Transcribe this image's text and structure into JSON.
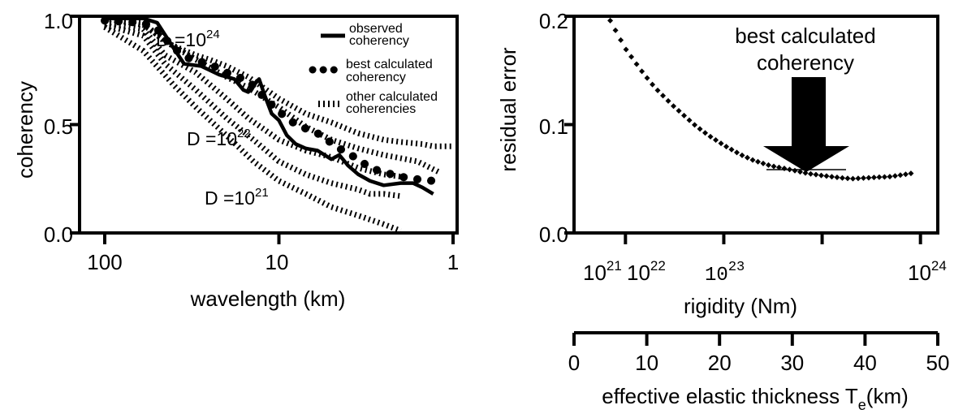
{
  "chart_data": [
    {
      "type": "line",
      "xlabel": "wavelength (km)",
      "ylabel": "coherency",
      "x_scale": "log",
      "x_reversed": true,
      "xlim": [
        100,
        1
      ],
      "ylim": [
        0,
        1
      ],
      "xticks": [
        "100",
        "10",
        "1"
      ],
      "yticks": [
        "0.0",
        "0.5",
        "1.0"
      ],
      "legend_position": "top-right",
      "legend": [
        {
          "line1": "observed",
          "line2": "coherency"
        },
        {
          "line1": "best calculated",
          "line2": "coherency"
        },
        {
          "line1": "other calculated",
          "line2": "coherencies"
        }
      ],
      "annotations": [
        {
          "base": "D =10",
          "exp": "24"
        },
        {
          "base": "D =10",
          "exp": "22"
        },
        {
          "base": "D =10",
          "exp": "21"
        }
      ],
      "series": [
        {
          "style": "solid",
          "x": [
            100,
            60,
            50,
            40,
            35,
            28,
            22,
            18,
            16,
            15,
            14,
            13,
            12,
            11,
            10,
            9,
            8,
            7,
            6,
            5,
            4.5,
            4,
            3.5,
            3,
            2.5,
            2,
            1.7,
            1.5,
            1.3
          ],
          "y": [
            0.99,
            0.99,
            0.97,
            0.85,
            0.78,
            0.77,
            0.73,
            0.71,
            0.66,
            0.65,
            0.68,
            0.71,
            0.63,
            0.55,
            0.52,
            0.45,
            0.41,
            0.39,
            0.38,
            0.34,
            0.36,
            0.31,
            0.27,
            0.24,
            0.22,
            0.23,
            0.23,
            0.21,
            0.18
          ]
        },
        {
          "style": "dotted",
          "x": [
            100,
            60,
            50,
            40,
            32,
            25,
            20,
            16,
            14,
            12,
            10,
            8,
            6,
            4.5,
            3.5,
            3,
            2.5,
            2,
            1.7,
            1.3
          ],
          "y": [
            0.98,
            0.97,
            0.94,
            0.85,
            0.8,
            0.78,
            0.74,
            0.71,
            0.68,
            0.62,
            0.56,
            0.5,
            0.46,
            0.39,
            0.34,
            0.3,
            0.28,
            0.26,
            0.25,
            0.24
          ]
        },
        {
          "style": "dashed",
          "x": [
            100,
            60,
            45,
            30,
            25,
            20,
            15,
            10,
            7,
            5,
            3.5,
            2.5,
            2,
            1.5,
            1.3,
            1
          ],
          "y": [
            0.98,
            0.97,
            0.88,
            0.82,
            0.8,
            0.77,
            0.72,
            0.62,
            0.55,
            0.51,
            0.46,
            0.43,
            0.42,
            0.41,
            0.4,
            0.4
          ]
        },
        {
          "style": "dashed",
          "x": [
            100,
            60,
            40,
            30,
            20,
            15,
            10,
            7,
            5,
            3.5,
            2.5,
            1.6,
            1.2
          ],
          "y": [
            0.99,
            0.96,
            0.86,
            0.8,
            0.72,
            0.67,
            0.58,
            0.49,
            0.43,
            0.39,
            0.36,
            0.33,
            0.28
          ]
        },
        {
          "style": "dashed",
          "x": [
            100,
            60,
            45,
            30,
            20,
            15,
            10,
            7,
            5,
            3.5,
            2.5,
            2
          ],
          "y": [
            0.97,
            0.94,
            0.82,
            0.74,
            0.62,
            0.53,
            0.43,
            0.38,
            0.35,
            0.3,
            0.27,
            0.26
          ]
        },
        {
          "style": "dashed",
          "x": [
            100,
            60,
            45,
            30,
            20,
            14,
            10,
            7,
            5,
            3.5,
            3,
            2.5,
            2
          ],
          "y": [
            0.96,
            0.91,
            0.78,
            0.66,
            0.53,
            0.43,
            0.33,
            0.27,
            0.23,
            0.2,
            0.18,
            0.18,
            0.17
          ]
        },
        {
          "style": "dashed",
          "x": [
            100,
            60,
            40,
            30,
            20,
            14,
            10,
            7,
            5,
            3.5,
            2.5,
            2
          ],
          "y": [
            0.95,
            0.84,
            0.68,
            0.58,
            0.45,
            0.33,
            0.24,
            0.18,
            0.12,
            0.08,
            0.04,
            0.01
          ]
        }
      ]
    },
    {
      "type": "scatter",
      "xlabel": "rigidity (Nm)",
      "ylabel": "residual error",
      "x_scale": "log",
      "xlim": [
        3e+20,
        1.5e+24
      ],
      "ylim": [
        0,
        0.2
      ],
      "yticks": [
        "0.0",
        "0.1",
        "0.2"
      ],
      "xticks": [
        {
          "base": "10",
          "exp": "21"
        },
        {
          "base": "10",
          "exp": "22"
        },
        {
          "base": "10",
          "exp": "23"
        },
        {
          "base": "10",
          "exp": "24"
        }
      ],
      "annotation": {
        "line1": "best calculated",
        "line2": "coherency"
      },
      "x": [
        7e+20,
        1e+21,
        1.5e+21,
        2e+21,
        3e+21,
        5e+21,
        7e+21,
        1e+22,
        1.5e+22,
        2e+22,
        3e+22,
        5e+22,
        7e+22,
        1e+23,
        1.5e+23,
        2e+23,
        3e+23,
        5e+23,
        7e+23,
        8e+23
      ],
      "y": [
        0.196,
        0.17,
        0.148,
        0.134,
        0.118,
        0.1,
        0.09,
        0.081,
        0.072,
        0.067,
        0.062,
        0.058,
        0.055,
        0.053,
        0.051,
        0.05,
        0.051,
        0.052,
        0.054,
        0.055
      ],
      "secondary_axis": {
        "label_base": "effective elastic thickness T",
        "label_sub": "e",
        "label_unit": "(km)",
        "range": [
          0,
          50
        ],
        "ticks": [
          "0",
          "10",
          "20",
          "30",
          "40",
          "50"
        ]
      }
    }
  ]
}
